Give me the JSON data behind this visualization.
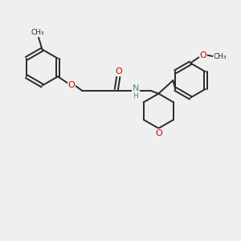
{
  "bg_color": "#efefef",
  "bond_color": "#2a2a2a",
  "bond_width": 1.4,
  "O_color": "#cc0000",
  "N_color": "#4a9090",
  "figsize": [
    3.0,
    3.0
  ],
  "dpi": 100,
  "xlim": [
    0,
    10
  ],
  "ylim": [
    0,
    10
  ]
}
